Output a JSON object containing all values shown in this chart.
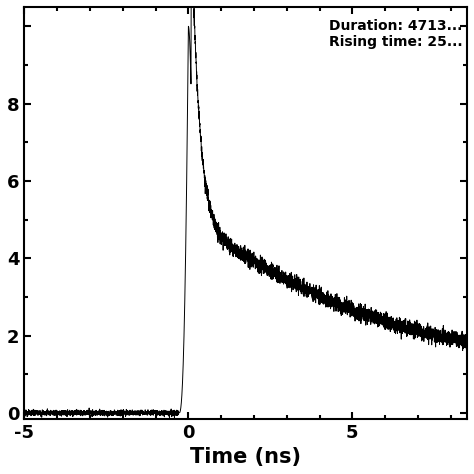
{
  "xlabel": "Time (ns)",
  "xlim": [
    -5,
    8.5
  ],
  "ylim": [
    -0.15,
    10.5
  ],
  "yticks": [
    0,
    2,
    4,
    6,
    8,
    10
  ],
  "yticklabels": [
    "0",
    "2",
    "4",
    "6",
    "8",
    ""
  ],
  "xticks": [
    -5,
    0,
    5
  ],
  "xticklabels": [
    "-5",
    "0",
    "5"
  ],
  "annotation_line1": "Duration: 4713...",
  "annotation_line2": "Rising time: 25...",
  "line_color": "#000000",
  "background_color": "#ffffff",
  "peak_value": 10.0,
  "plateau_value": 4.5,
  "tail_end_value": 1.05,
  "baseline_noise": 0.035,
  "signal_noise": 0.1
}
